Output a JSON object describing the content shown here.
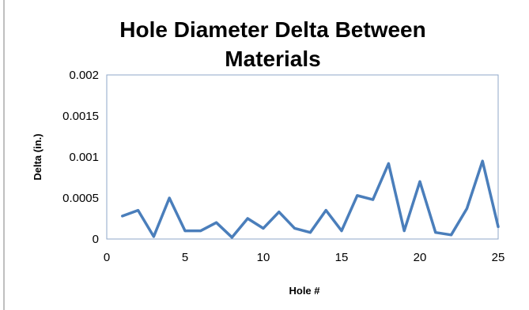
{
  "chart_data": {
    "type": "line",
    "title_lines": [
      "Hole Diameter Delta Between",
      "Materials"
    ],
    "xlabel": "Hole #",
    "ylabel": "Delta (in.)",
    "xlim": [
      0,
      25
    ],
    "ylim": [
      0,
      0.002
    ],
    "x_ticks": [
      "0",
      "5",
      "10",
      "15",
      "20",
      "25"
    ],
    "y_ticks": [
      "0",
      "0.0005",
      "0.001",
      "0.0015",
      "0.002"
    ],
    "grid": false,
    "legend": "none",
    "series": [
      {
        "color": "#4a7ebb",
        "x": [
          1,
          2,
          3,
          4,
          5,
          6,
          7,
          8,
          9,
          10,
          11,
          12,
          13,
          14,
          15,
          16,
          17,
          18,
          19,
          20,
          21,
          22,
          23,
          24,
          25
        ],
        "values": [
          0.00028,
          0.00035,
          3e-05,
          0.0005,
          0.0001,
          0.0001,
          0.0002,
          2e-05,
          0.00025,
          0.00013,
          0.00033,
          0.00013,
          8e-05,
          0.00035,
          0.0001,
          0.00053,
          0.00048,
          0.00092,
          0.0001,
          0.0007,
          8e-05,
          5e-05,
          0.00037,
          0.00095,
          0.00015
        ]
      }
    ]
  }
}
